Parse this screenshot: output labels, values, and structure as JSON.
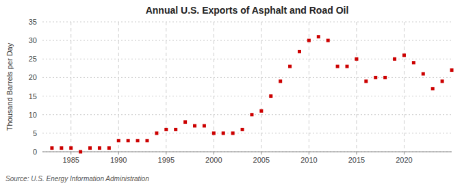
{
  "chart_data": {
    "type": "scatter",
    "title": "Annual U.S. Exports of Asphalt and Road Oil",
    "ylabel": "Thousand Barrels per Day",
    "annotations": [
      "Source: U.S. Energy Information Administration"
    ],
    "x": [
      1983,
      1984,
      1985,
      1986,
      1987,
      1988,
      1989,
      1990,
      1991,
      1992,
      1993,
      1994,
      1995,
      1996,
      1997,
      1998,
      1999,
      2000,
      2001,
      2002,
      2003,
      2004,
      2005,
      2006,
      2007,
      2008,
      2009,
      2010,
      2011,
      2012,
      2013,
      2014,
      2015,
      2016,
      2017,
      2018,
      2019,
      2020,
      2021,
      2022,
      2023,
      2024,
      2025
    ],
    "values": [
      1,
      1,
      1,
      0,
      1,
      1,
      1,
      3,
      3,
      3,
      3,
      5,
      6,
      6,
      8,
      7,
      7,
      5,
      5,
      5,
      6,
      10,
      11,
      15,
      19,
      23,
      27,
      30,
      31,
      30,
      23,
      23,
      25,
      19,
      20,
      20,
      25,
      26,
      24,
      21,
      17,
      19,
      22
    ],
    "color": "#cc0000",
    "marker": "square",
    "xlim": [
      1982,
      2025
    ],
    "ylim": [
      0,
      35
    ],
    "xticks": [
      1985,
      1990,
      1995,
      2000,
      2005,
      2010,
      2015,
      2020
    ],
    "yticks": [
      0,
      5,
      10,
      15,
      20,
      25,
      30,
      35
    ],
    "grid": true
  }
}
